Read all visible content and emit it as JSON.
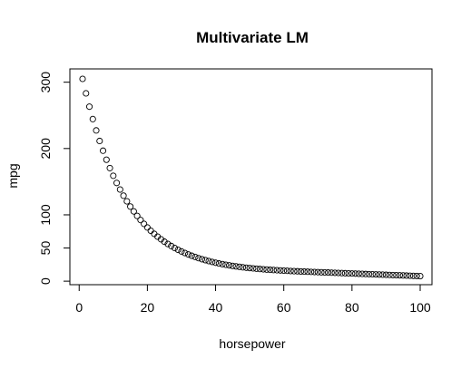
{
  "chart_data": {
    "type": "scatter",
    "title": "Multivariate LM",
    "xlabel": "horsepower",
    "ylabel": "mpg",
    "xlim": [
      1,
      100
    ],
    "ylim": [
      7,
      305
    ],
    "x_ticks": [
      0,
      20,
      40,
      60,
      80,
      100
    ],
    "y_ticks": [
      0,
      50,
      100,
      200,
      300
    ],
    "grid": false,
    "colors": {
      "points": "#000000",
      "frame": "#000000"
    },
    "x": [
      1,
      2,
      3,
      4,
      5,
      6,
      7,
      8,
      9,
      10,
      11,
      12,
      13,
      14,
      15,
      16,
      17,
      18,
      19,
      20,
      21,
      22,
      23,
      24,
      25,
      26,
      27,
      28,
      29,
      30,
      31,
      32,
      33,
      34,
      35,
      36,
      37,
      38,
      39,
      40,
      41,
      42,
      43,
      44,
      45,
      46,
      47,
      48,
      49,
      50,
      51,
      52,
      53,
      54,
      55,
      56,
      57,
      58,
      59,
      60,
      61,
      62,
      63,
      64,
      65,
      66,
      67,
      68,
      69,
      70,
      71,
      72,
      73,
      74,
      75,
      76,
      77,
      78,
      79,
      80,
      81,
      82,
      83,
      84,
      85,
      86,
      87,
      88,
      89,
      90,
      91,
      92,
      93,
      94,
      95,
      96,
      97,
      98,
      99,
      100
    ],
    "y": [
      305,
      283.2,
      263.1,
      244.4,
      227.3,
      211.4,
      196.7,
      183.1,
      170.5,
      158.9,
      148.1,
      138.2,
      128.9,
      120.4,
      112.5,
      105.2,
      98.4,
      92.2,
      86.4,
      81,
      76,
      71.4,
      67.1,
      63.2,
      59.5,
      56.1,
      53,
      50,
      47.3,
      44.8,
      42.5,
      40.3,
      38.3,
      36.5,
      34.7,
      33.1,
      31.7,
      30.3,
      29,
      27.8,
      26.7,
      25.7,
      24.7,
      23.9,
      23,
      22.3,
      21.6,
      20.9,
      20.3,
      19.8,
      19.3,
      18.8,
      18.3,
      17.9,
      17.5,
      17.1,
      16.8,
      16.5,
      16.2,
      15.9,
      15.6,
      15.3,
      15.1,
      14.9,
      14.6,
      14.4,
      14.2,
      14,
      13.8,
      13.6,
      13.4,
      13.2,
      13,
      12.8,
      12.6,
      12.4,
      12.2,
      12,
      11.8,
      11.6,
      11.4,
      11.2,
      11,
      10.8,
      10.6,
      10.4,
      10.2,
      10,
      9.8,
      9.6,
      9.4,
      9.2,
      9,
      8.8,
      8.6,
      8.4,
      8.2,
      8,
      7.8,
      7.6
    ]
  }
}
